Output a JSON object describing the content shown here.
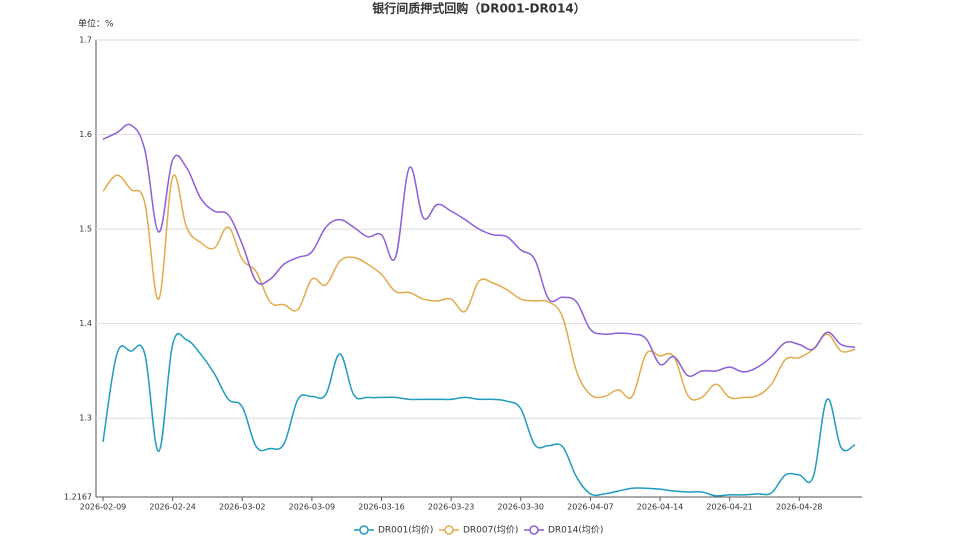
{
  "chart_data": {
    "type": "line",
    "title": "银行间质押式回购（DR001-DR014）",
    "unit_label": "单位：%",
    "categories": [
      "2026-02-09",
      null,
      null,
      null,
      null,
      "2026-02-24",
      null,
      null,
      null,
      null,
      "2026-03-02",
      null,
      null,
      null,
      null,
      "2026-03-09",
      null,
      null,
      null,
      null,
      "2026-03-16",
      null,
      null,
      null,
      null,
      "2026-03-23",
      null,
      null,
      null,
      null,
      "2026-03-30",
      null,
      null,
      null,
      null,
      "2026-04-07",
      null,
      null,
      null,
      null,
      "2026-04-14",
      null,
      null,
      null,
      null,
      "2026-04-21",
      null,
      null,
      null,
      null,
      "2026-04-28",
      null,
      null,
      null,
      null
    ],
    "series": [
      {
        "name": "DR001(均价)",
        "color": "#1f9bbf",
        "values": [
          1.275,
          1.368,
          1.371,
          1.368,
          1.265,
          1.378,
          1.383,
          1.368,
          1.347,
          1.32,
          1.312,
          1.27,
          1.268,
          1.273,
          1.32,
          1.323,
          1.325,
          1.368,
          1.325,
          1.322,
          1.322,
          1.322,
          1.32,
          1.32,
          1.32,
          1.32,
          1.322,
          1.32,
          1.32,
          1.318,
          1.31,
          1.272,
          1.271,
          1.27,
          1.238,
          1.22,
          1.22,
          1.223,
          1.226,
          1.226,
          1.225,
          1.223,
          1.222,
          1.222,
          1.218,
          1.219,
          1.219,
          1.22,
          1.221,
          1.24,
          1.24,
          1.238,
          1.32,
          1.269,
          1.272
        ]
      },
      {
        "name": "DR007(均价)",
        "color": "#e3aa4b",
        "values": [
          1.54,
          1.557,
          1.542,
          1.528,
          1.426,
          1.555,
          1.502,
          1.486,
          1.48,
          1.502,
          1.468,
          1.455,
          1.423,
          1.42,
          1.415,
          1.447,
          1.441,
          1.466,
          1.47,
          1.463,
          1.452,
          1.434,
          1.433,
          1.426,
          1.424,
          1.426,
          1.413,
          1.445,
          1.443,
          1.436,
          1.426,
          1.424,
          1.423,
          1.407,
          1.35,
          1.325,
          1.323,
          1.33,
          1.323,
          1.368,
          1.366,
          1.365,
          1.324,
          1.322,
          1.336,
          1.322,
          1.322,
          1.324,
          1.336,
          1.362,
          1.364,
          1.373,
          1.389,
          1.371,
          1.373
        ]
      },
      {
        "name": "DR014(均价)",
        "color": "#8c5fd8",
        "values": [
          1.595,
          1.602,
          1.61,
          1.584,
          1.497,
          1.573,
          1.565,
          1.533,
          1.519,
          1.515,
          1.484,
          1.445,
          1.447,
          1.463,
          1.47,
          1.476,
          1.502,
          1.51,
          1.502,
          1.492,
          1.494,
          1.47,
          1.565,
          1.512,
          1.526,
          1.519,
          1.51,
          1.5,
          1.494,
          1.492,
          1.478,
          1.468,
          1.426,
          1.428,
          1.423,
          1.394,
          1.389,
          1.39,
          1.389,
          1.384,
          1.357,
          1.365,
          1.345,
          1.35,
          1.35,
          1.354,
          1.349,
          1.354,
          1.365,
          1.38,
          1.378,
          1.373,
          1.391,
          1.378,
          1.375
        ]
      }
    ],
    "ylim": [
      1.2167,
      1.7
    ],
    "yticks": [
      1.2167,
      1.3,
      1.4,
      1.5,
      1.6,
      1.7
    ],
    "grid": true,
    "legend": "bottom"
  }
}
